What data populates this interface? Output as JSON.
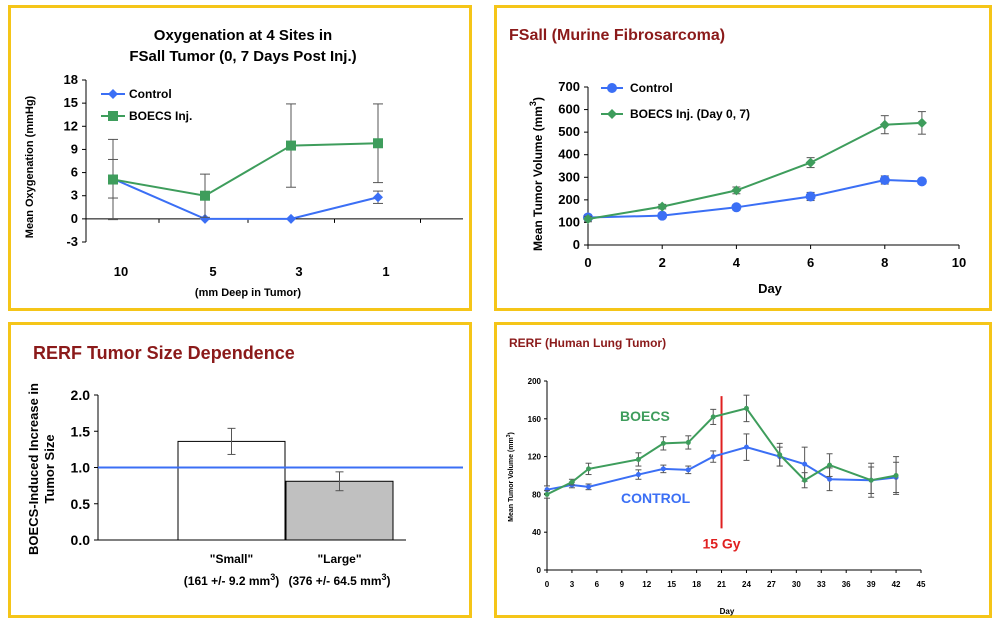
{
  "colors": {
    "control": "#3b6ff5",
    "boecs": "#3e9d5c",
    "title_red": "#8b1a1a",
    "panel_border": "#f5c518",
    "dose_line": "#e02020",
    "small_bar": "#ffffff",
    "large_bar": "#c0c0c0"
  },
  "chart_data": [
    {
      "type": "line",
      "title_line1": "Oxygenation at 4 Sites in",
      "title_line2": "FSall Tumor (0, 7 Days Post Inj.)",
      "xlabel": "(mm Deep in Tumor)",
      "ylabel": "Mean Oxygenation (mmHg)",
      "categories": [
        "10",
        "5",
        "3",
        "1"
      ],
      "ylim": [
        -3,
        18
      ],
      "yticks": [
        "-3",
        "0",
        "3",
        "6",
        "9",
        "12",
        "15",
        "18"
      ],
      "series": [
        {
          "name": "Control",
          "marker": "diamond",
          "values": [
            5.2,
            0,
            0,
            2.8
          ],
          "err": [
            2.5,
            0,
            0,
            0.8
          ]
        },
        {
          "name": "BOECS Inj.",
          "marker": "square",
          "values": [
            5.1,
            3.0,
            9.5,
            9.8
          ],
          "err": [
            5.2,
            2.8,
            5.4,
            5.1
          ]
        }
      ]
    },
    {
      "type": "line",
      "title": "FSall (Murine Fibrosarcoma)",
      "xlabel": "Day",
      "ylabel_main": "Mean Tumor Volume (mm",
      "ylabel_sup": "3",
      "ylabel_close": ")",
      "xlim": [
        0,
        10
      ],
      "ylim": [
        0,
        700
      ],
      "xticks": [
        "0",
        "2",
        "4",
        "6",
        "8",
        "10"
      ],
      "yticks": [
        "0",
        "100",
        "200",
        "300",
        "400",
        "500",
        "600",
        "700"
      ],
      "series": [
        {
          "name": "Control",
          "marker": "circle",
          "x": [
            0,
            2,
            4,
            6,
            8,
            9
          ],
          "values": [
            122,
            130,
            167,
            215,
            288,
            282
          ],
          "err": [
            12,
            10,
            12,
            18,
            18,
            0
          ]
        },
        {
          "name": "BOECS Inj. (Day 0, 7)",
          "marker": "diamond",
          "x": [
            0,
            2,
            4,
            6,
            8,
            9
          ],
          "values": [
            115,
            170,
            242,
            365,
            533,
            541
          ],
          "err": [
            12,
            10,
            15,
            22,
            40,
            50
          ]
        }
      ]
    },
    {
      "type": "bar",
      "title": "RERF Tumor Size Dependence",
      "ylabel_line1": "BOECS-Induced Increase in",
      "ylabel_line2": "Tumor Size",
      "ylim": [
        0,
        2.0
      ],
      "yticks": [
        "0.0",
        "0.5",
        "1.0",
        "1.5",
        "2.0"
      ],
      "reference_line": 1.0,
      "categories": [
        {
          "name": "\"Small\"",
          "sub_main": "(161 +/- 9.2 mm",
          "sub_sup": "3",
          "sub_close": ")",
          "value": 1.36,
          "err": 0.18
        },
        {
          "name": "\"Large\"",
          "sub_main": "(376 +/- 64.5 mm",
          "sub_sup": "3",
          "sub_close": ")",
          "value": 0.81,
          "err": 0.13
        }
      ]
    },
    {
      "type": "line",
      "title": "RERF (Human Lung Tumor)",
      "xlabel": "Day",
      "ylabel_main": "Mean Tumor Volume (mm",
      "ylabel_sup": "3",
      "ylabel_close": ")",
      "xlim": [
        0,
        45
      ],
      "ylim": [
        0,
        200
      ],
      "xticks": [
        "0",
        "3",
        "6",
        "9",
        "12",
        "15",
        "18",
        "21",
        "24",
        "27",
        "30",
        "33",
        "36",
        "39",
        "42",
        "45"
      ],
      "yticks": [
        "0",
        "40",
        "80",
        "120",
        "160",
        "200"
      ],
      "annotation": "15 Gy",
      "annotation_x": 21,
      "series": [
        {
          "name": "CONTROL",
          "x": [
            0,
            3,
            5,
            11,
            14,
            17,
            20,
            24,
            28,
            31,
            34,
            39,
            42
          ],
          "values": [
            85,
            90,
            88,
            101,
            107,
            106,
            120,
            130,
            120,
            112,
            96,
            95,
            98
          ],
          "err": [
            4,
            3,
            3,
            5,
            4,
            4,
            6,
            14,
            10,
            18,
            12,
            14,
            16
          ]
        },
        {
          "name": "BOECS",
          "x": [
            0,
            3,
            5,
            11,
            14,
            17,
            20,
            24,
            28,
            31,
            34,
            39,
            42
          ],
          "values": [
            80,
            93,
            107,
            117,
            134,
            135,
            162,
            171,
            122,
            95,
            111,
            95,
            100
          ],
          "err": [
            4,
            3,
            6,
            7,
            7,
            7,
            8,
            14,
            12,
            8,
            12,
            18,
            20
          ]
        }
      ]
    }
  ]
}
